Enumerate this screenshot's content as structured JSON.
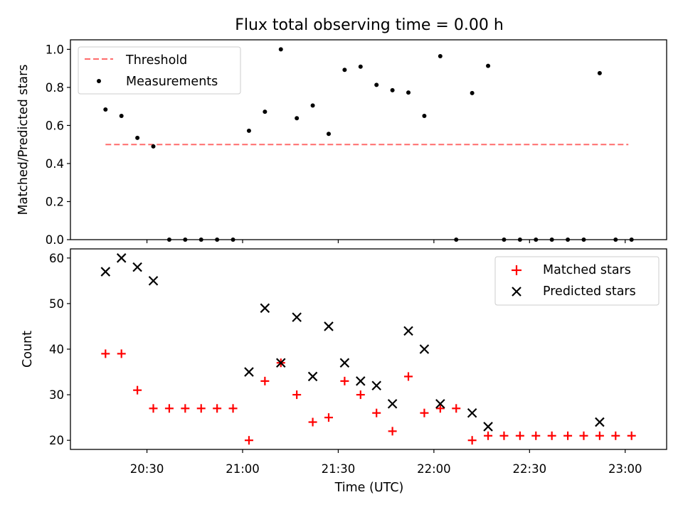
{
  "title": "Flux total observing time = 0.00 h",
  "colors": {
    "threshold": "#ff6b6b",
    "measurement": "#000000",
    "matched": "#ff0000",
    "predicted": "#000000"
  },
  "chart_data": [
    {
      "type": "scatter",
      "ylabel": "Matched/Predicted stars",
      "ylim": [
        0,
        1.05
      ],
      "y_ticks": [
        "0.0",
        "0.2",
        "0.4",
        "0.6",
        "0.8",
        "1.0"
      ],
      "legend_position": "top-left",
      "series": [
        {
          "name": "Threshold",
          "style": "dashed-line",
          "x": [
            "20:17",
            "23:01"
          ],
          "y": [
            0.5,
            0.5
          ]
        },
        {
          "name": "Measurements",
          "style": "dot",
          "x": [
            "20:17",
            "20:22",
            "20:27",
            "20:32",
            "20:37",
            "20:42",
            "20:47",
            "20:52",
            "20:57",
            "21:02",
            "21:07",
            "21:12",
            "21:17",
            "21:22",
            "21:27",
            "21:32",
            "21:37",
            "21:42",
            "21:47",
            "21:52",
            "21:57",
            "22:02",
            "22:07",
            "22:12",
            "22:17",
            "22:22",
            "22:27",
            "22:32",
            "22:37",
            "22:42",
            "22:47",
            "22:52",
            "22:57",
            "23:02"
          ],
          "y": [
            0.684,
            0.65,
            0.535,
            0.49,
            0,
            0,
            0,
            0,
            0,
            0.572,
            0.672,
            1.0,
            0.638,
            0.705,
            0.556,
            0.892,
            0.909,
            0.813,
            0.785,
            0.773,
            0.65,
            0.964,
            0,
            0.77,
            0.913,
            0,
            0,
            0,
            0,
            0,
            0,
            0.875,
            0,
            0
          ]
        }
      ]
    },
    {
      "type": "scatter",
      "xlabel": "Time (UTC)",
      "ylabel": "Count",
      "ylim": [
        18,
        62
      ],
      "y_ticks": [
        "20",
        "30",
        "40",
        "50",
        "60"
      ],
      "x_ticks": [
        "20:30",
        "21:00",
        "21:30",
        "22:00",
        "22:30",
        "23:00"
      ],
      "legend_position": "top-right",
      "series": [
        {
          "name": "Matched stars",
          "marker": "plus",
          "x": [
            "20:17",
            "20:22",
            "20:27",
            "20:32",
            "20:37",
            "20:42",
            "20:47",
            "20:52",
            "20:57",
            "21:02",
            "21:07",
            "21:12",
            "21:17",
            "21:22",
            "21:27",
            "21:32",
            "21:37",
            "21:42",
            "21:47",
            "21:52",
            "21:57",
            "22:02",
            "22:07",
            "22:12",
            "22:17",
            "22:22",
            "22:27",
            "22:32",
            "22:37",
            "22:42",
            "22:47",
            "22:52",
            "22:57",
            "23:02"
          ],
          "y": [
            39,
            39,
            31,
            27,
            27,
            27,
            27,
            27,
            27,
            20,
            33,
            37,
            30,
            24,
            25,
            33,
            30,
            26,
            22,
            34,
            26,
            27,
            27,
            20,
            21,
            21,
            21,
            21,
            21,
            21,
            21,
            21,
            21,
            21
          ]
        },
        {
          "name": "Predicted stars",
          "marker": "x",
          "x": [
            "20:17",
            "20:22",
            "20:27",
            "20:32",
            "21:02",
            "21:07",
            "21:12",
            "21:17",
            "21:22",
            "21:27",
            "21:32",
            "21:37",
            "21:42",
            "21:47",
            "21:52",
            "21:57",
            "22:02",
            "22:12",
            "22:17",
            "22:52"
          ],
          "y": [
            57,
            60,
            58,
            55,
            35,
            49,
            37,
            47,
            34,
            45,
            37,
            33,
            32,
            28,
            44,
            40,
            28,
            26,
            23,
            24
          ]
        }
      ]
    }
  ]
}
